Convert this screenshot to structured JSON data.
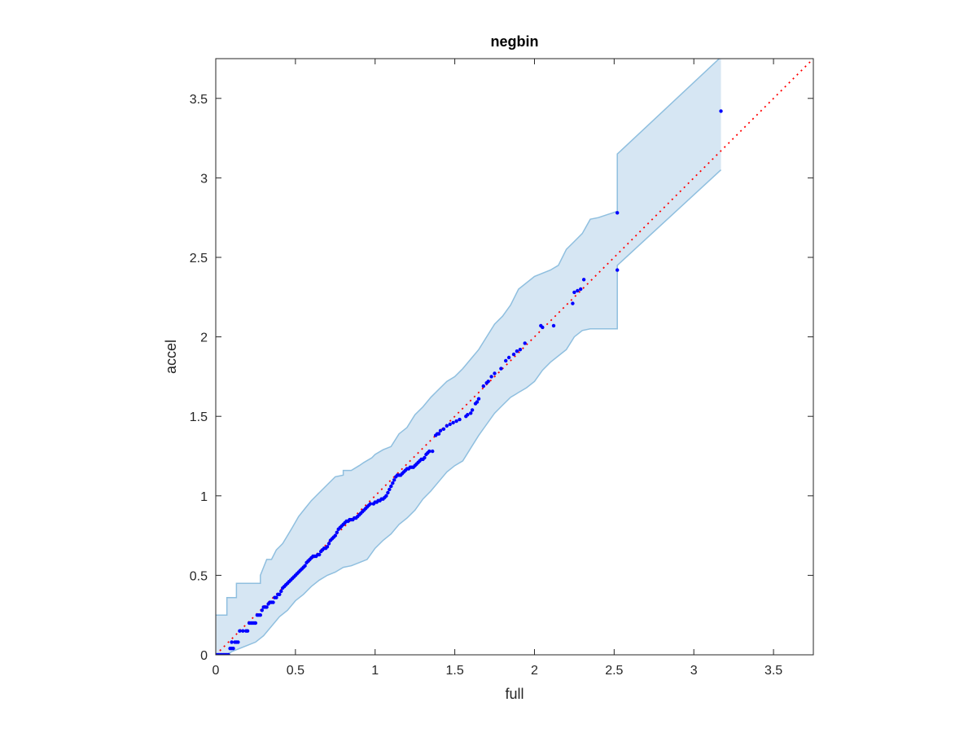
{
  "chart_data": {
    "type": "scatter",
    "title": "negbin",
    "xlabel": "full",
    "ylabel": "accel",
    "xlim": [
      0,
      3.75
    ],
    "ylim": [
      0,
      3.75
    ],
    "xticks": [
      0,
      0.5,
      1,
      1.5,
      2,
      2.5,
      3,
      3.5
    ],
    "yticks": [
      0,
      0.5,
      1,
      1.5,
      2,
      2.5,
      3,
      3.5
    ],
    "xtick_labels": [
      "0",
      "0.5",
      "1",
      "1.5",
      "2",
      "2.5",
      "3",
      "3.5"
    ],
    "ytick_labels": [
      "0",
      "0.5",
      "1",
      "1.5",
      "2",
      "2.5",
      "3",
      "3.5"
    ],
    "grid": false,
    "reference_line": {
      "style": "dotted",
      "color": "#ff0000",
      "from": [
        0,
        0
      ],
      "to": [
        3.75,
        3.75
      ]
    },
    "band": {
      "color_fill": "#d6e6f3",
      "color_edge": "#8fbfdf",
      "upper": [
        [
          0,
          0.25
        ],
        [
          0.07,
          0.25
        ],
        [
          0.07,
          0.36
        ],
        [
          0.13,
          0.36
        ],
        [
          0.13,
          0.45
        ],
        [
          0.2,
          0.45
        ],
        [
          0.28,
          0.45
        ],
        [
          0.28,
          0.5
        ],
        [
          0.3,
          0.55
        ],
        [
          0.32,
          0.6
        ],
        [
          0.35,
          0.6
        ],
        [
          0.38,
          0.66
        ],
        [
          0.42,
          0.7
        ],
        [
          0.45,
          0.75
        ],
        [
          0.48,
          0.8
        ],
        [
          0.52,
          0.87
        ],
        [
          0.56,
          0.92
        ],
        [
          0.6,
          0.97
        ],
        [
          0.65,
          1.02
        ],
        [
          0.7,
          1.07
        ],
        [
          0.75,
          1.12
        ],
        [
          0.8,
          1.13
        ],
        [
          0.8,
          1.16
        ],
        [
          0.85,
          1.16
        ],
        [
          0.9,
          1.19
        ],
        [
          0.93,
          1.21
        ],
        [
          0.98,
          1.24
        ],
        [
          1.0,
          1.26
        ],
        [
          1.05,
          1.29
        ],
        [
          1.1,
          1.31
        ],
        [
          1.15,
          1.39
        ],
        [
          1.2,
          1.43
        ],
        [
          1.25,
          1.51
        ],
        [
          1.3,
          1.56
        ],
        [
          1.35,
          1.62
        ],
        [
          1.4,
          1.67
        ],
        [
          1.45,
          1.72
        ],
        [
          1.5,
          1.75
        ],
        [
          1.55,
          1.8
        ],
        [
          1.6,
          1.86
        ],
        [
          1.65,
          1.92
        ],
        [
          1.7,
          2.0
        ],
        [
          1.75,
          2.08
        ],
        [
          1.8,
          2.13
        ],
        [
          1.85,
          2.2
        ],
        [
          1.9,
          2.3
        ],
        [
          2.0,
          2.38
        ],
        [
          2.1,
          2.42
        ],
        [
          2.15,
          2.45
        ],
        [
          2.2,
          2.55
        ],
        [
          2.25,
          2.6
        ],
        [
          2.3,
          2.65
        ],
        [
          2.35,
          2.74
        ],
        [
          2.4,
          2.75
        ],
        [
          2.52,
          2.79
        ],
        [
          2.52,
          3.15
        ],
        [
          3.17,
          3.76
        ],
        [
          3.17,
          3.76
        ]
      ],
      "lower": [
        [
          0,
          0.0
        ],
        [
          0.07,
          0.0
        ],
        [
          0.1,
          0.02
        ],
        [
          0.15,
          0.04
        ],
        [
          0.2,
          0.06
        ],
        [
          0.25,
          0.08
        ],
        [
          0.3,
          0.12
        ],
        [
          0.35,
          0.18
        ],
        [
          0.4,
          0.24
        ],
        [
          0.45,
          0.28
        ],
        [
          0.5,
          0.34
        ],
        [
          0.55,
          0.38
        ],
        [
          0.6,
          0.43
        ],
        [
          0.65,
          0.47
        ],
        [
          0.7,
          0.5
        ],
        [
          0.75,
          0.52
        ],
        [
          0.8,
          0.55
        ],
        [
          0.85,
          0.56
        ],
        [
          0.9,
          0.58
        ],
        [
          0.95,
          0.6
        ],
        [
          1.0,
          0.67
        ],
        [
          1.05,
          0.72
        ],
        [
          1.1,
          0.76
        ],
        [
          1.15,
          0.82
        ],
        [
          1.2,
          0.86
        ],
        [
          1.25,
          0.91
        ],
        [
          1.3,
          0.98
        ],
        [
          1.35,
          1.03
        ],
        [
          1.4,
          1.09
        ],
        [
          1.45,
          1.15
        ],
        [
          1.5,
          1.19
        ],
        [
          1.55,
          1.22
        ],
        [
          1.6,
          1.3
        ],
        [
          1.65,
          1.38
        ],
        [
          1.7,
          1.45
        ],
        [
          1.75,
          1.52
        ],
        [
          1.8,
          1.57
        ],
        [
          1.85,
          1.62
        ],
        [
          1.9,
          1.65
        ],
        [
          1.95,
          1.68
        ],
        [
          2.0,
          1.72
        ],
        [
          2.05,
          1.79
        ],
        [
          2.1,
          1.84
        ],
        [
          2.15,
          1.88
        ],
        [
          2.2,
          1.92
        ],
        [
          2.25,
          2.0
        ],
        [
          2.3,
          2.04
        ],
        [
          2.35,
          2.05
        ],
        [
          2.4,
          2.05
        ],
        [
          2.52,
          2.05
        ],
        [
          2.52,
          2.45
        ],
        [
          3.17,
          3.05
        ],
        [
          3.17,
          3.05
        ]
      ]
    },
    "points": [
      [
        0.0,
        0.0
      ],
      [
        0.01,
        0.0
      ],
      [
        0.02,
        0.0
      ],
      [
        0.03,
        0.0
      ],
      [
        0.04,
        0.0
      ],
      [
        0.05,
        0.0
      ],
      [
        0.06,
        0.0
      ],
      [
        0.07,
        0.0
      ],
      [
        0.08,
        0.0
      ],
      [
        0.09,
        0.04
      ],
      [
        0.1,
        0.04
      ],
      [
        0.11,
        0.04
      ],
      [
        0.1,
        0.08
      ],
      [
        0.12,
        0.08
      ],
      [
        0.13,
        0.08
      ],
      [
        0.14,
        0.08
      ],
      [
        0.15,
        0.15
      ],
      [
        0.17,
        0.15
      ],
      [
        0.19,
        0.15
      ],
      [
        0.2,
        0.15
      ],
      [
        0.21,
        0.2
      ],
      [
        0.22,
        0.2
      ],
      [
        0.23,
        0.2
      ],
      [
        0.24,
        0.2
      ],
      [
        0.25,
        0.2
      ],
      [
        0.26,
        0.25
      ],
      [
        0.27,
        0.25
      ],
      [
        0.28,
        0.25
      ],
      [
        0.29,
        0.28
      ],
      [
        0.3,
        0.3
      ],
      [
        0.31,
        0.3
      ],
      [
        0.32,
        0.3
      ],
      [
        0.33,
        0.32
      ],
      [
        0.34,
        0.33
      ],
      [
        0.35,
        0.33
      ],
      [
        0.36,
        0.33
      ],
      [
        0.37,
        0.36
      ],
      [
        0.38,
        0.36
      ],
      [
        0.39,
        0.38
      ],
      [
        0.4,
        0.38
      ],
      [
        0.41,
        0.4
      ],
      [
        0.42,
        0.42
      ],
      [
        0.43,
        0.43
      ],
      [
        0.44,
        0.44
      ],
      [
        0.45,
        0.45
      ],
      [
        0.46,
        0.46
      ],
      [
        0.47,
        0.47
      ],
      [
        0.48,
        0.48
      ],
      [
        0.49,
        0.49
      ],
      [
        0.5,
        0.5
      ],
      [
        0.51,
        0.51
      ],
      [
        0.52,
        0.52
      ],
      [
        0.53,
        0.53
      ],
      [
        0.54,
        0.54
      ],
      [
        0.55,
        0.55
      ],
      [
        0.56,
        0.56
      ],
      [
        0.57,
        0.58
      ],
      [
        0.58,
        0.59
      ],
      [
        0.59,
        0.6
      ],
      [
        0.6,
        0.61
      ],
      [
        0.61,
        0.62
      ],
      [
        0.62,
        0.62
      ],
      [
        0.63,
        0.62
      ],
      [
        0.64,
        0.63
      ],
      [
        0.65,
        0.63
      ],
      [
        0.66,
        0.65
      ],
      [
        0.67,
        0.66
      ],
      [
        0.68,
        0.67
      ],
      [
        0.69,
        0.67
      ],
      [
        0.7,
        0.68
      ],
      [
        0.71,
        0.7
      ],
      [
        0.72,
        0.72
      ],
      [
        0.73,
        0.73
      ],
      [
        0.74,
        0.74
      ],
      [
        0.75,
        0.75
      ],
      [
        0.76,
        0.77
      ],
      [
        0.77,
        0.79
      ],
      [
        0.78,
        0.8
      ],
      [
        0.79,
        0.81
      ],
      [
        0.8,
        0.82
      ],
      [
        0.81,
        0.83
      ],
      [
        0.82,
        0.84
      ],
      [
        0.83,
        0.84
      ],
      [
        0.84,
        0.85
      ],
      [
        0.85,
        0.85
      ],
      [
        0.86,
        0.85
      ],
      [
        0.87,
        0.86
      ],
      [
        0.88,
        0.86
      ],
      [
        0.89,
        0.87
      ],
      [
        0.9,
        0.88
      ],
      [
        0.91,
        0.89
      ],
      [
        0.92,
        0.9
      ],
      [
        0.93,
        0.91
      ],
      [
        0.94,
        0.92
      ],
      [
        0.95,
        0.93
      ],
      [
        0.96,
        0.94
      ],
      [
        0.97,
        0.95
      ],
      [
        0.99,
        0.95
      ],
      [
        1.0,
        0.96
      ],
      [
        1.01,
        0.96
      ],
      [
        1.02,
        0.97
      ],
      [
        1.03,
        0.97
      ],
      [
        1.04,
        0.98
      ],
      [
        1.05,
        0.98
      ],
      [
        1.06,
        0.99
      ],
      [
        1.07,
        1.0
      ],
      [
        1.08,
        1.02
      ],
      [
        1.09,
        1.04
      ],
      [
        1.1,
        1.06
      ],
      [
        1.11,
        1.08
      ],
      [
        1.12,
        1.1
      ],
      [
        1.13,
        1.12
      ],
      [
        1.14,
        1.13
      ],
      [
        1.15,
        1.13
      ],
      [
        1.16,
        1.13
      ],
      [
        1.17,
        1.14
      ],
      [
        1.18,
        1.15
      ],
      [
        1.19,
        1.16
      ],
      [
        1.2,
        1.17
      ],
      [
        1.21,
        1.17
      ],
      [
        1.22,
        1.18
      ],
      [
        1.23,
        1.18
      ],
      [
        1.24,
        1.18
      ],
      [
        1.25,
        1.19
      ],
      [
        1.26,
        1.2
      ],
      [
        1.27,
        1.21
      ],
      [
        1.28,
        1.22
      ],
      [
        1.29,
        1.23
      ],
      [
        1.3,
        1.23
      ],
      [
        1.31,
        1.24
      ],
      [
        1.32,
        1.26
      ],
      [
        1.33,
        1.27
      ],
      [
        1.34,
        1.28
      ],
      [
        1.36,
        1.28
      ],
      [
        1.38,
        1.38
      ],
      [
        1.39,
        1.39
      ],
      [
        1.4,
        1.39
      ],
      [
        1.41,
        1.41
      ],
      [
        1.43,
        1.42
      ],
      [
        1.45,
        1.44
      ],
      [
        1.47,
        1.45
      ],
      [
        1.49,
        1.46
      ],
      [
        1.51,
        1.47
      ],
      [
        1.53,
        1.48
      ],
      [
        1.57,
        1.5
      ],
      [
        1.58,
        1.51
      ],
      [
        1.6,
        1.52
      ],
      [
        1.61,
        1.54
      ],
      [
        1.63,
        1.58
      ],
      [
        1.64,
        1.59
      ],
      [
        1.65,
        1.61
      ],
      [
        1.68,
        1.69
      ],
      [
        1.7,
        1.71
      ],
      [
        1.71,
        1.72
      ],
      [
        1.73,
        1.75
      ],
      [
        1.75,
        1.77
      ],
      [
        1.79,
        1.8
      ],
      [
        1.82,
        1.85
      ],
      [
        1.84,
        1.87
      ],
      [
        1.87,
        1.89
      ],
      [
        1.89,
        1.91
      ],
      [
        1.91,
        1.92
      ],
      [
        1.94,
        1.96
      ],
      [
        2.04,
        2.07
      ],
      [
        2.05,
        2.06
      ],
      [
        2.12,
        2.07
      ],
      [
        2.24,
        2.21
      ],
      [
        2.25,
        2.28
      ],
      [
        2.27,
        2.29
      ],
      [
        2.29,
        2.3
      ],
      [
        2.31,
        2.36
      ],
      [
        2.52,
        2.78
      ],
      [
        2.52,
        2.42
      ],
      [
        3.17,
        3.42
      ]
    ]
  }
}
